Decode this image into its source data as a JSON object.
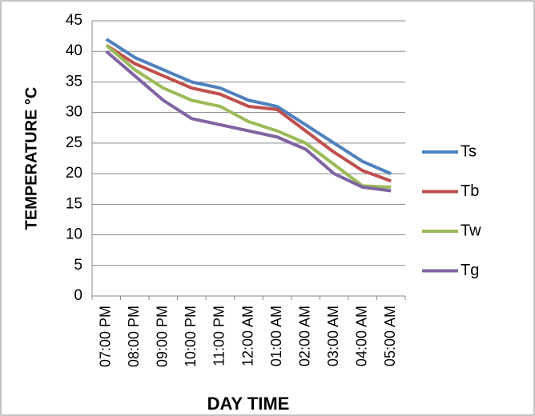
{
  "chart_data": {
    "type": "line",
    "x_label": "DAY TIME",
    "y_label": "TEMPERATURE °C",
    "categories": [
      "07:00 PM",
      "08:00 PM",
      "09:00 PM",
      "10:00 PM",
      "11:00 PM",
      "12:00 AM",
      "01:00 AM",
      "02:00 AM",
      "03:00 AM",
      "04:00 AM",
      "05:00 AM"
    ],
    "series": [
      {
        "name": "Ts",
        "color": "#4f81bd",
        "values": [
          42,
          39,
          37,
          35,
          34,
          32,
          31,
          28,
          25,
          22,
          20
        ]
      },
      {
        "name": "Tb",
        "color": "#c0504d",
        "values": [
          41,
          38,
          36,
          34,
          33,
          31,
          30.5,
          27,
          23.5,
          20.5,
          18.8
        ]
      },
      {
        "name": "Tw",
        "color": "#9bbb59",
        "values": [
          41,
          37,
          34,
          32,
          31,
          28.5,
          27,
          25,
          21.5,
          18,
          17.8
        ]
      },
      {
        "name": "Tg",
        "color": "#8064a2",
        "values": [
          40,
          36,
          32,
          29,
          28,
          27,
          26,
          24,
          20,
          17.8,
          17.2
        ]
      }
    ],
    "ylim": [
      0,
      45
    ],
    "yticks": [
      0,
      5,
      10,
      15,
      20,
      25,
      30,
      35,
      40,
      45
    ],
    "grid": true,
    "legend": "right"
  }
}
